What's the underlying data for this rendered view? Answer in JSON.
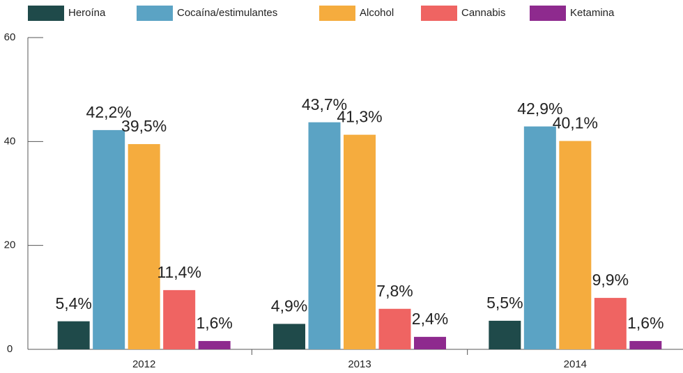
{
  "chart_data": {
    "type": "bar",
    "categories": [
      "2012",
      "2013",
      "2014"
    ],
    "series": [
      {
        "name": "Heroína",
        "color": "#1f4a4a",
        "values": [
          5.4,
          4.9,
          5.5
        ],
        "value_labels": [
          "5,4%",
          "4,9%",
          "5,5%"
        ]
      },
      {
        "name": "Cocaína/estimulantes",
        "color": "#5ba3c4",
        "values": [
          42.2,
          43.7,
          42.9
        ],
        "value_labels": [
          "42,2%",
          "43,7%",
          "42,9%"
        ]
      },
      {
        "name": "Alcohol",
        "color": "#f5ac3e",
        "values": [
          39.5,
          41.3,
          40.1
        ],
        "value_labels": [
          "39,5%",
          "41,3%",
          "40,1%"
        ]
      },
      {
        "name": "Cannabis",
        "color": "#ef6462",
        "values": [
          11.4,
          7.8,
          9.9
        ],
        "value_labels": [
          "11,4%",
          "7,8%",
          "9,9%"
        ]
      },
      {
        "name": "Ketamina",
        "color": "#8e2a8e",
        "values": [
          1.6,
          2.4,
          1.6
        ],
        "value_labels": [
          "1,6%",
          "2,4%",
          "1,6%"
        ]
      }
    ],
    "ylim": [
      0,
      60
    ],
    "yticks": [
      0,
      20,
      40,
      60
    ],
    "legend": "top"
  }
}
